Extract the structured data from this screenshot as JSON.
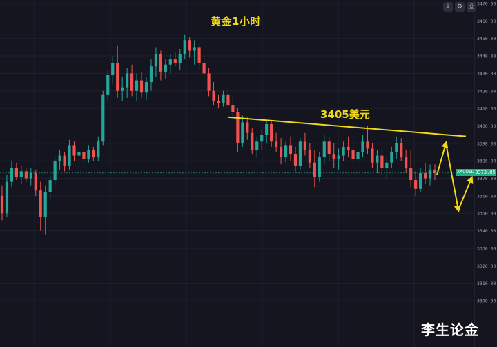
{
  "chart_title": "黄金1小时",
  "annotation": "3405美元",
  "watermark": "李生论金",
  "toolbar": {
    "down_icon": "↓",
    "settings_icon": "⚙",
    "screenshot_icon": "⎙"
  },
  "price_tag": {
    "symbol": "XAUUSD",
    "value": "3373.05"
  },
  "chart_data": {
    "type": "candlestick",
    "title": "黄金1小时",
    "ylim": [
      3290,
      3470
    ],
    "yticks": [
      3300,
      3310,
      3320,
      3330,
      3340,
      3350,
      3360,
      3370,
      3380,
      3390,
      3400,
      3410,
      3420,
      3430,
      3440,
      3450,
      3460,
      3470
    ],
    "ytick_labels": [
      "3300.00",
      "3310.00",
      "3320.00",
      "3330.00",
      "3340.00",
      "3350.00",
      "3360.00",
      "3370.00",
      "3380.00",
      "3390.00",
      "3400.00",
      "3410.00",
      "3420.00",
      "3430.00",
      "3440.00",
      "3450.00",
      "3460.00",
      "3470.00"
    ],
    "last_price": 3373.05,
    "colors": {
      "up": "#26a69a",
      "down": "#ef5350",
      "annotation": "#f0d818",
      "background": "#14151f",
      "grid": "#1f2130"
    },
    "candles": [
      [
        3360,
        3366,
        3346,
        3350
      ],
      [
        3350,
        3372,
        3348,
        3368
      ],
      [
        3368,
        3380,
        3365,
        3376
      ],
      [
        3376,
        3379,
        3369,
        3371
      ],
      [
        3371,
        3377,
        3367,
        3374
      ],
      [
        3374,
        3376,
        3368,
        3370
      ],
      [
        3370,
        3376,
        3366,
        3373
      ],
      [
        3373,
        3375,
        3360,
        3363
      ],
      [
        3363,
        3368,
        3340,
        3348
      ],
      [
        3348,
        3366,
        3338,
        3362
      ],
      [
        3362,
        3372,
        3358,
        3369
      ],
      [
        3369,
        3382,
        3366,
        3380
      ],
      [
        3380,
        3386,
        3375,
        3383
      ],
      [
        3383,
        3385,
        3374,
        3377
      ],
      [
        3377,
        3392,
        3375,
        3389
      ],
      [
        3389,
        3391,
        3380,
        3383
      ],
      [
        3383,
        3389,
        3380,
        3385
      ],
      [
        3385,
        3388,
        3378,
        3381
      ],
      [
        3381,
        3389,
        3379,
        3386
      ],
      [
        3386,
        3388,
        3380,
        3382
      ],
      [
        3382,
        3394,
        3380,
        3391
      ],
      [
        3391,
        3420,
        3389,
        3418
      ],
      [
        3418,
        3432,
        3414,
        3429
      ],
      [
        3429,
        3440,
        3424,
        3436
      ],
      [
        3436,
        3446,
        3416,
        3420
      ],
      [
        3420,
        3428,
        3414,
        3422
      ],
      [
        3422,
        3433,
        3416,
        3430
      ],
      [
        3430,
        3435,
        3417,
        3420
      ],
      [
        3420,
        3430,
        3414,
        3426
      ],
      [
        3426,
        3431,
        3416,
        3419
      ],
      [
        3419,
        3428,
        3415,
        3425
      ],
      [
        3425,
        3438,
        3420,
        3434
      ],
      [
        3434,
        3445,
        3428,
        3441
      ],
      [
        3441,
        3443,
        3426,
        3431
      ],
      [
        3431,
        3438,
        3427,
        3435
      ],
      [
        3435,
        3441,
        3430,
        3438
      ],
      [
        3438,
        3442,
        3434,
        3436
      ],
      [
        3436,
        3444,
        3432,
        3441
      ],
      [
        3441,
        3452,
        3438,
        3449
      ],
      [
        3449,
        3451,
        3439,
        3443
      ],
      [
        3443,
        3449,
        3435,
        3445
      ],
      [
        3445,
        3447,
        3432,
        3436
      ],
      [
        3436,
        3440,
        3428,
        3430
      ],
      [
        3430,
        3433,
        3417,
        3420
      ],
      [
        3420,
        3425,
        3412,
        3414
      ],
      [
        3414,
        3418,
        3410,
        3413
      ],
      [
        3413,
        3420,
        3411,
        3418
      ],
      [
        3418,
        3423,
        3411,
        3412
      ],
      [
        3412,
        3417,
        3405,
        3408
      ],
      [
        3408,
        3410,
        3385,
        3390
      ],
      [
        3390,
        3406,
        3388,
        3402
      ],
      [
        3402,
        3405,
        3392,
        3396
      ],
      [
        3396,
        3399,
        3384,
        3386
      ],
      [
        3386,
        3394,
        3382,
        3391
      ],
      [
        3391,
        3398,
        3386,
        3395
      ],
      [
        3395,
        3403,
        3390,
        3401
      ],
      [
        3401,
        3403,
        3388,
        3391
      ],
      [
        3391,
        3396,
        3385,
        3388
      ],
      [
        3388,
        3393,
        3378,
        3382
      ],
      [
        3382,
        3391,
        3379,
        3389
      ],
      [
        3389,
        3394,
        3380,
        3384
      ],
      [
        3384,
        3388,
        3374,
        3377
      ],
      [
        3377,
        3393,
        3375,
        3391
      ],
      [
        3391,
        3396,
        3383,
        3386
      ],
      [
        3386,
        3390,
        3376,
        3379
      ],
      [
        3379,
        3386,
        3365,
        3371
      ],
      [
        3371,
        3385,
        3368,
        3382
      ],
      [
        3382,
        3395,
        3378,
        3391
      ],
      [
        3391,
        3394,
        3380,
        3384
      ],
      [
        3384,
        3390,
        3376,
        3381
      ],
      [
        3381,
        3387,
        3375,
        3383
      ],
      [
        3383,
        3391,
        3380,
        3388
      ],
      [
        3388,
        3394,
        3382,
        3386
      ],
      [
        3386,
        3392,
        3378,
        3381
      ],
      [
        3381,
        3389,
        3376,
        3385
      ],
      [
        3385,
        3395,
        3382,
        3391
      ],
      [
        3391,
        3400,
        3384,
        3387
      ],
      [
        3387,
        3390,
        3376,
        3379
      ],
      [
        3379,
        3386,
        3373,
        3383
      ],
      [
        3383,
        3387,
        3372,
        3376
      ],
      [
        3376,
        3382,
        3370,
        3379
      ],
      [
        3379,
        3388,
        3376,
        3385
      ],
      [
        3385,
        3394,
        3381,
        3390
      ],
      [
        3390,
        3393,
        3380,
        3382
      ],
      [
        3382,
        3386,
        3373,
        3376
      ],
      [
        3376,
        3386,
        3365,
        3369
      ],
      [
        3369,
        3374,
        3360,
        3364
      ],
      [
        3364,
        3376,
        3362,
        3373
      ],
      [
        3373,
        3379,
        3367,
        3370
      ],
      [
        3370,
        3378,
        3366,
        3375
      ],
      [
        3375,
        3378,
        3369,
        3373
      ]
    ],
    "annotations": [
      {
        "type": "line",
        "from": [
          330,
          3405
        ],
        "to": [
          675,
          3394
        ],
        "label": "3405美元"
      },
      {
        "type": "arrow_path",
        "points": [
          [
            633,
            3372
          ],
          [
            646,
            3390
          ],
          [
            664,
            3352
          ],
          [
            683,
            3370
          ]
        ]
      }
    ]
  }
}
